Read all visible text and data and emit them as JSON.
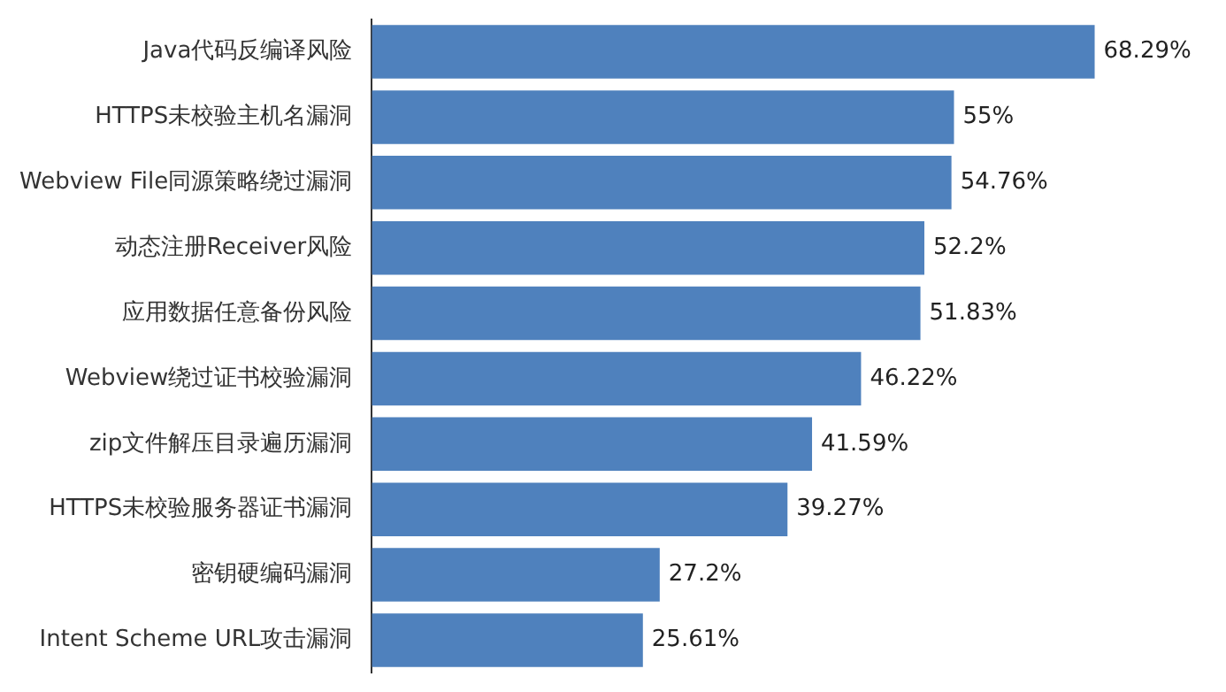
{
  "chart_data": {
    "type": "bar",
    "orientation": "horizontal",
    "categories": [
      "Java代码反编译风险",
      "HTTPS未校验主机名漏洞",
      "Webview File同源策略绕过漏洞",
      "动态注册Receiver风险",
      "应用数据任意备份风险",
      "Webview绕过证书校验漏洞",
      "zip文件解压目录遍历漏洞",
      "HTTPS未校验服务器证书漏洞",
      "密钥硬编码漏洞",
      "Intent Scheme URL攻击漏洞"
    ],
    "values": [
      68.29,
      55,
      54.76,
      52.2,
      51.83,
      46.22,
      41.59,
      39.27,
      27.2,
      25.61
    ],
    "value_labels": [
      "68.29%",
      "55%",
      "54.76%",
      "52.2%",
      "51.83%",
      "46.22%",
      "41.59%",
      "39.27%",
      "27.2%",
      "25.61%"
    ],
    "color": "#4f81bd",
    "tick_labels": "y"
  }
}
